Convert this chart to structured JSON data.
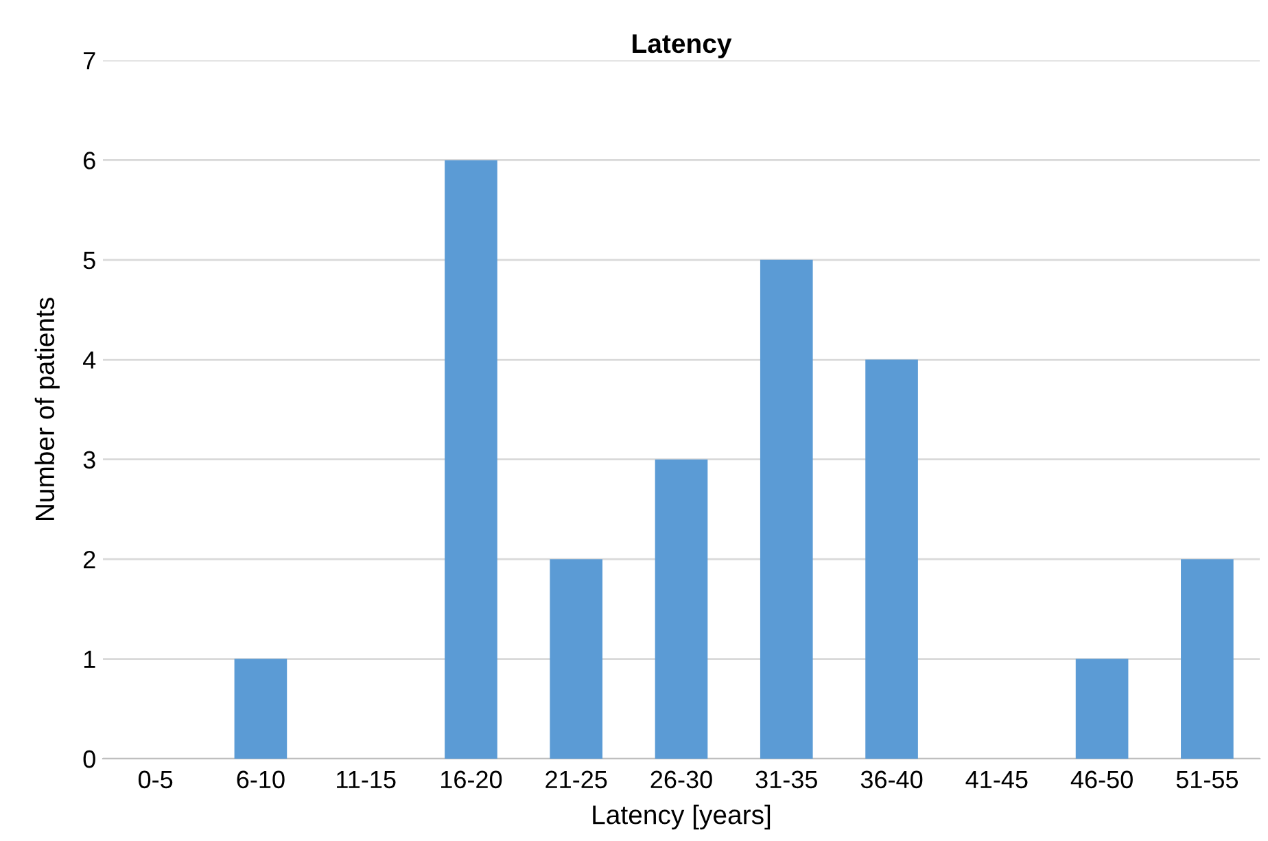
{
  "chart_data": {
    "type": "bar",
    "title": "Latency",
    "xlabel": "Latency [years]",
    "ylabel": "Number of patients",
    "categories": [
      "0-5",
      "6-10",
      "11-15",
      "16-20",
      "21-25",
      "26-30",
      "31-35",
      "36-40",
      "41-45",
      "46-50",
      "51-55"
    ],
    "values": [
      0,
      1,
      0,
      6,
      2,
      3,
      5,
      4,
      0,
      1,
      2
    ],
    "color": "#5b9bd5",
    "ylim": [
      0,
      7
    ],
    "yticks": [
      0,
      1,
      2,
      3,
      4,
      5,
      6,
      7
    ],
    "grid": "y",
    "legend": false
  }
}
